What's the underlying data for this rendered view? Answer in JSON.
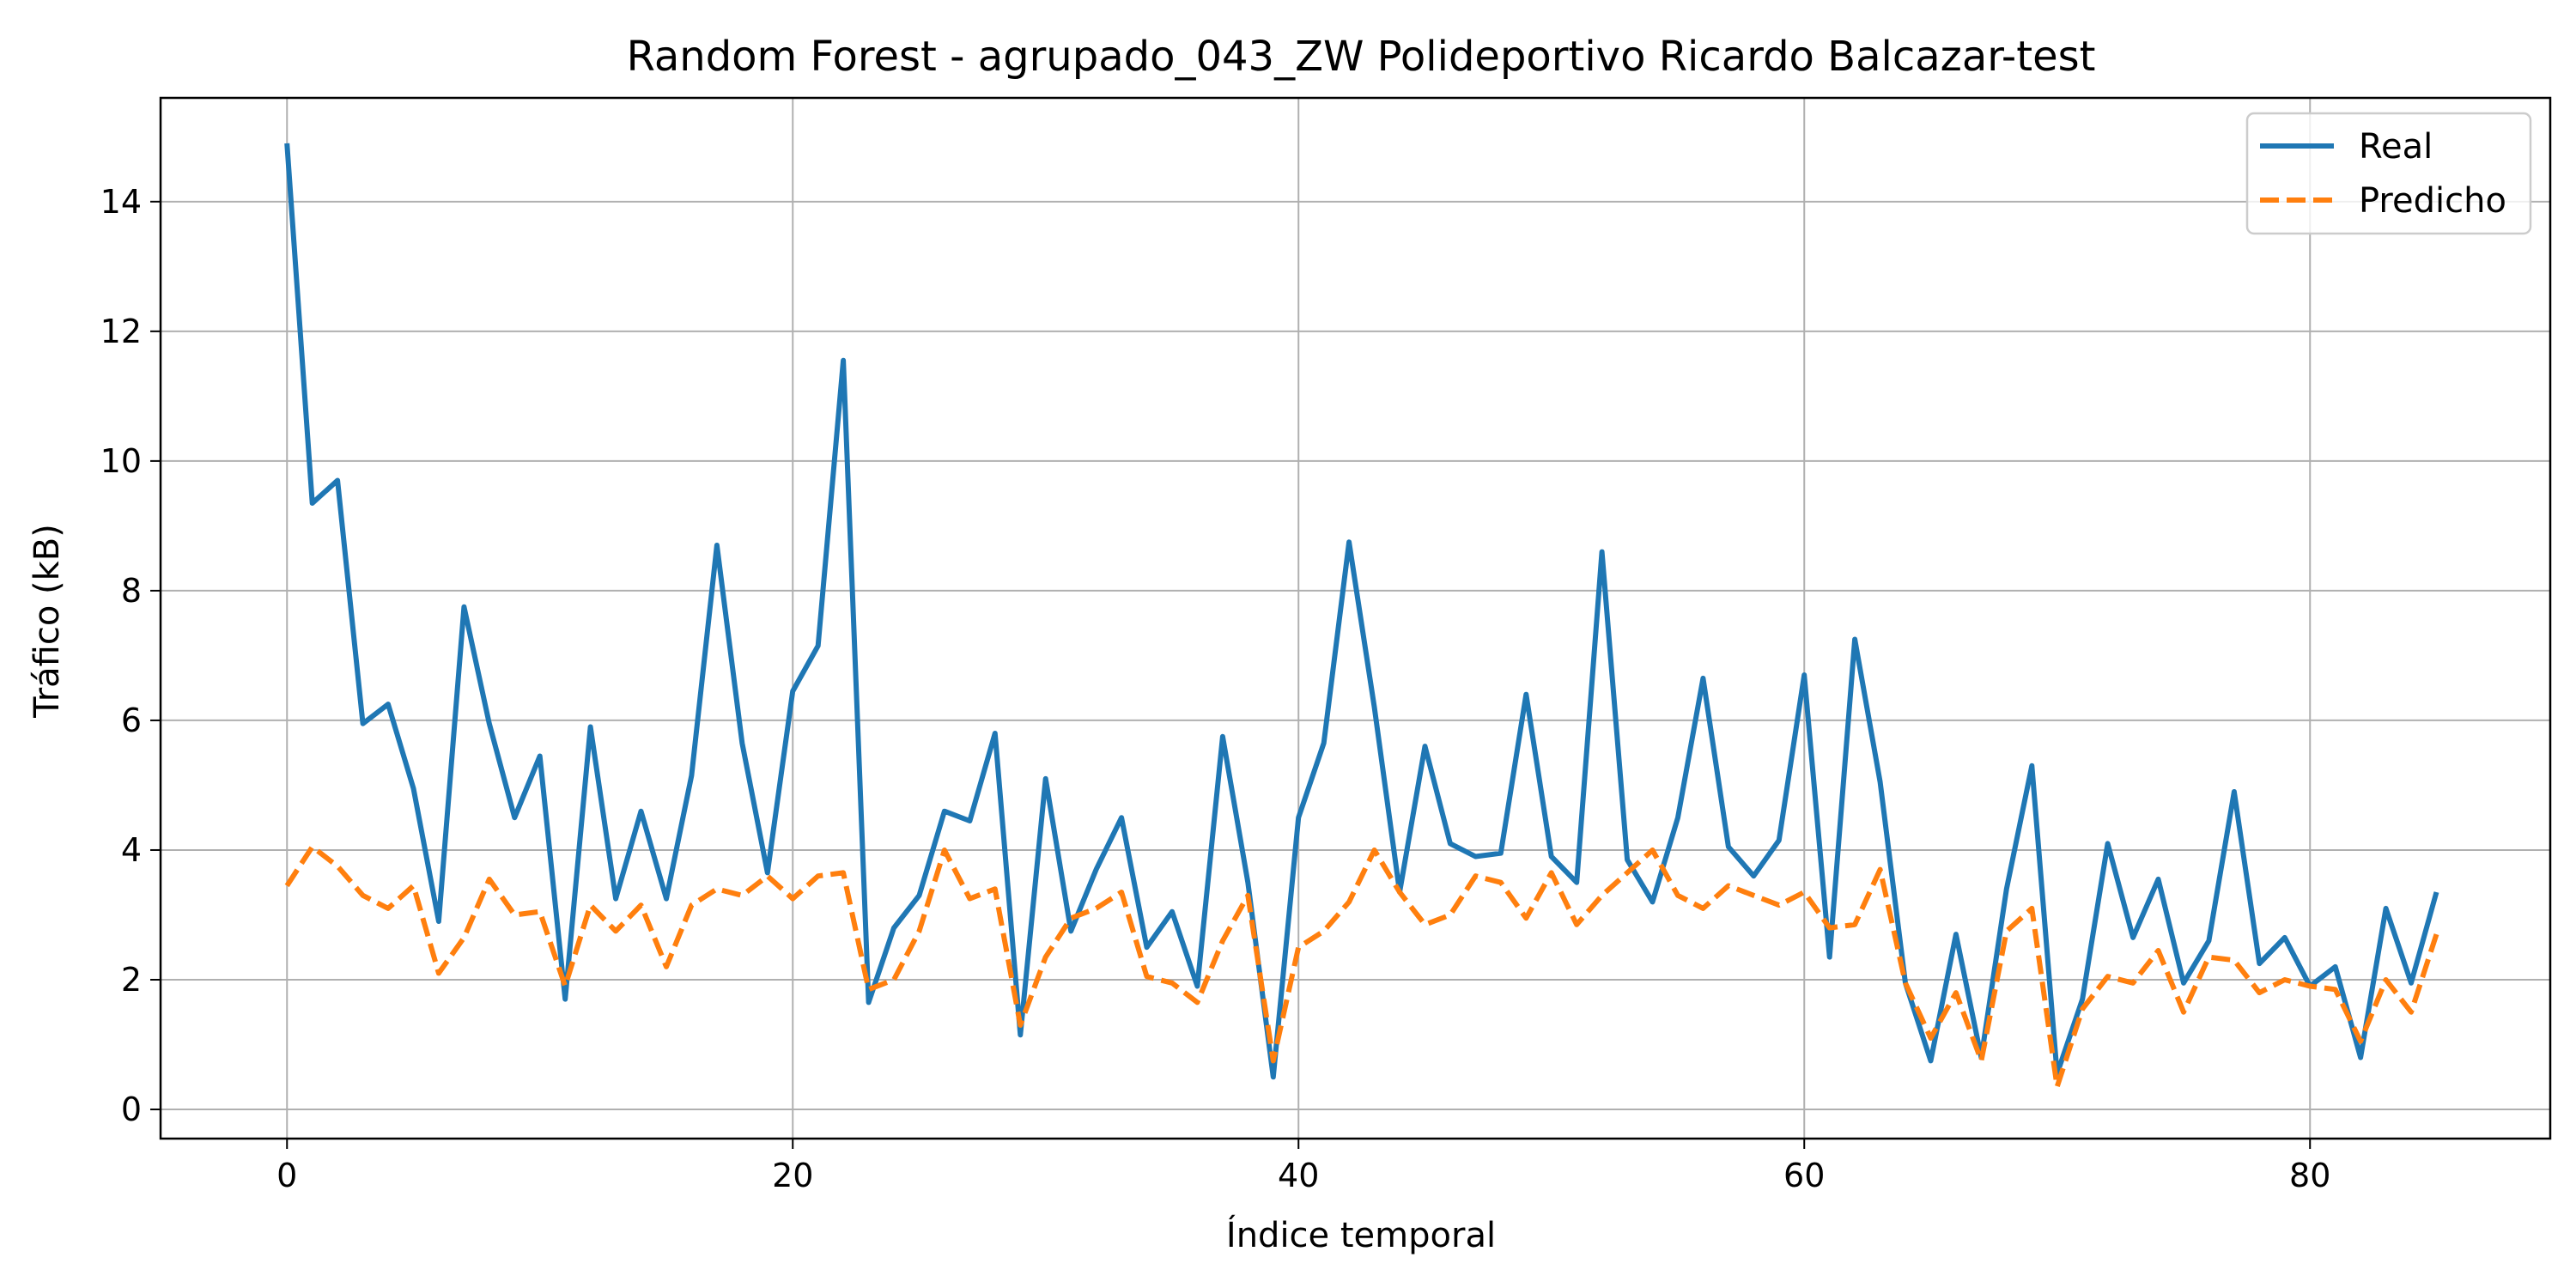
{
  "chart_data": {
    "type": "line",
    "title": "Random Forest - agrupado_043_ZW Polideportivo Ricardo Balcazar-test",
    "xlabel": "Índice temporal",
    "ylabel": "Tráfico (kB)",
    "xlim": [
      -5,
      89.5
    ],
    "ylim": [
      -0.45,
      15.6
    ],
    "xticks": [
      0,
      20,
      40,
      60,
      80
    ],
    "yticks": [
      0,
      2,
      4,
      6,
      8,
      10,
      12,
      14
    ],
    "grid": true,
    "legend_position": "top-right",
    "series": [
      {
        "name": "Real",
        "color": "#1f77b4",
        "style": "solid",
        "values": [
          14.9,
          9.35,
          9.7,
          5.95,
          6.25,
          4.95,
          2.9,
          7.75,
          5.95,
          4.5,
          5.45,
          1.7,
          5.9,
          3.25,
          4.6,
          3.25,
          5.15,
          8.7,
          5.65,
          3.65,
          6.45,
          7.15,
          11.55,
          1.65,
          2.8,
          3.3,
          4.6,
          4.45,
          5.8,
          1.15,
          5.1,
          2.75,
          3.7,
          4.5,
          2.5,
          3.05,
          1.9,
          5.75,
          3.5,
          0.5,
          4.5,
          5.65,
          8.75,
          6.2,
          3.35,
          5.6,
          4.1,
          3.9,
          3.95,
          6.4,
          3.9,
          3.5,
          8.6,
          3.85,
          3.2,
          4.5,
          6.65,
          4.05,
          3.6,
          4.15,
          6.7,
          2.35,
          7.25,
          5.05,
          1.95,
          0.75,
          2.7,
          0.8,
          3.4,
          5.3,
          0.55,
          1.7,
          4.1,
          2.65,
          3.55,
          1.95,
          2.6,
          4.9,
          2.25,
          2.65,
          1.9,
          2.2,
          0.8,
          3.1,
          1.95,
          3.35
        ]
      },
      {
        "name": "Predicho",
        "color": "#ff7f0e",
        "style": "dashed",
        "values": [
          3.45,
          4.05,
          3.75,
          3.3,
          3.1,
          3.45,
          2.1,
          2.65,
          3.55,
          3.0,
          3.05,
          1.9,
          3.15,
          2.75,
          3.15,
          2.2,
          3.15,
          3.4,
          3.3,
          3.6,
          3.25,
          3.6,
          3.65,
          1.85,
          2.0,
          2.75,
          4.0,
          3.25,
          3.4,
          1.3,
          2.35,
          2.95,
          3.1,
          3.35,
          2.05,
          1.95,
          1.65,
          2.6,
          3.3,
          0.75,
          2.5,
          2.75,
          3.2,
          4.0,
          3.35,
          2.85,
          3.0,
          3.6,
          3.5,
          2.95,
          3.65,
          2.85,
          3.3,
          3.65,
          4.0,
          3.3,
          3.1,
          3.45,
          3.3,
          3.15,
          3.35,
          2.8,
          2.85,
          3.7,
          1.95,
          1.1,
          1.8,
          0.75,
          2.75,
          3.1,
          0.35,
          1.55,
          2.05,
          1.95,
          2.45,
          1.5,
          2.35,
          2.3,
          1.8,
          2.0,
          1.9,
          1.85,
          1.05,
          2.0,
          1.5,
          2.7
        ]
      }
    ]
  }
}
